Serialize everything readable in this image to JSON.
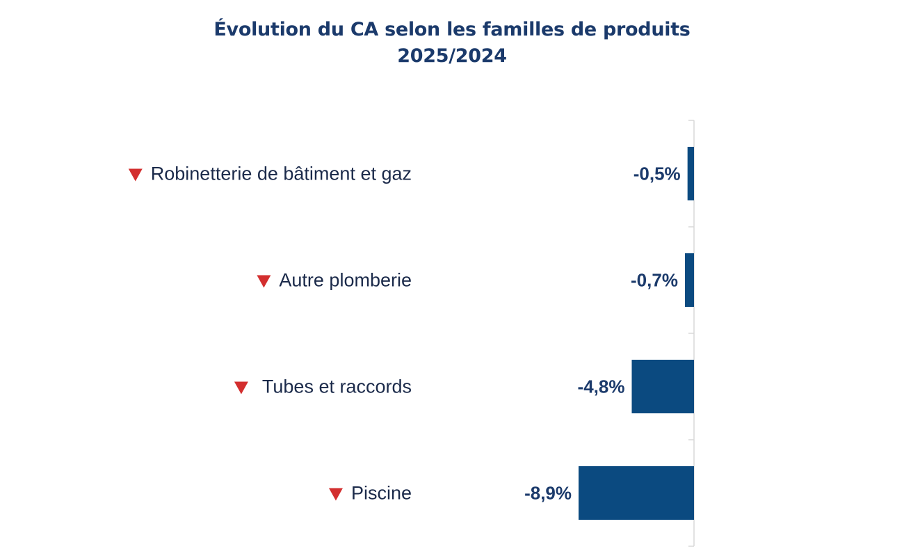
{
  "chart_data": {
    "type": "bar",
    "orientation": "horizontal",
    "title": "Évolution du CA selon les familles de produits",
    "subtitle": "2025/2024",
    "categories": [
      "Robinetterie de bâtiment et gaz",
      "Autre plomberie",
      "Tubes et raccords",
      "Piscine"
    ],
    "values": [
      -0.5,
      -0.7,
      -4.8,
      -8.9
    ],
    "data_labels": [
      "-0,5%",
      "-0,7%",
      "-4,8%",
      "-8,9%"
    ],
    "indicator": "down-triangle",
    "xlim": [
      -8.9,
      0
    ],
    "grid": false,
    "legend": "none",
    "colors": {
      "bar": "#0b4a80",
      "indicator": "#d32f2f",
      "axis": "#d9d9d9",
      "title": "#1b3a6b",
      "label": "#1b2a4a",
      "value": "#1b3a6b"
    }
  }
}
